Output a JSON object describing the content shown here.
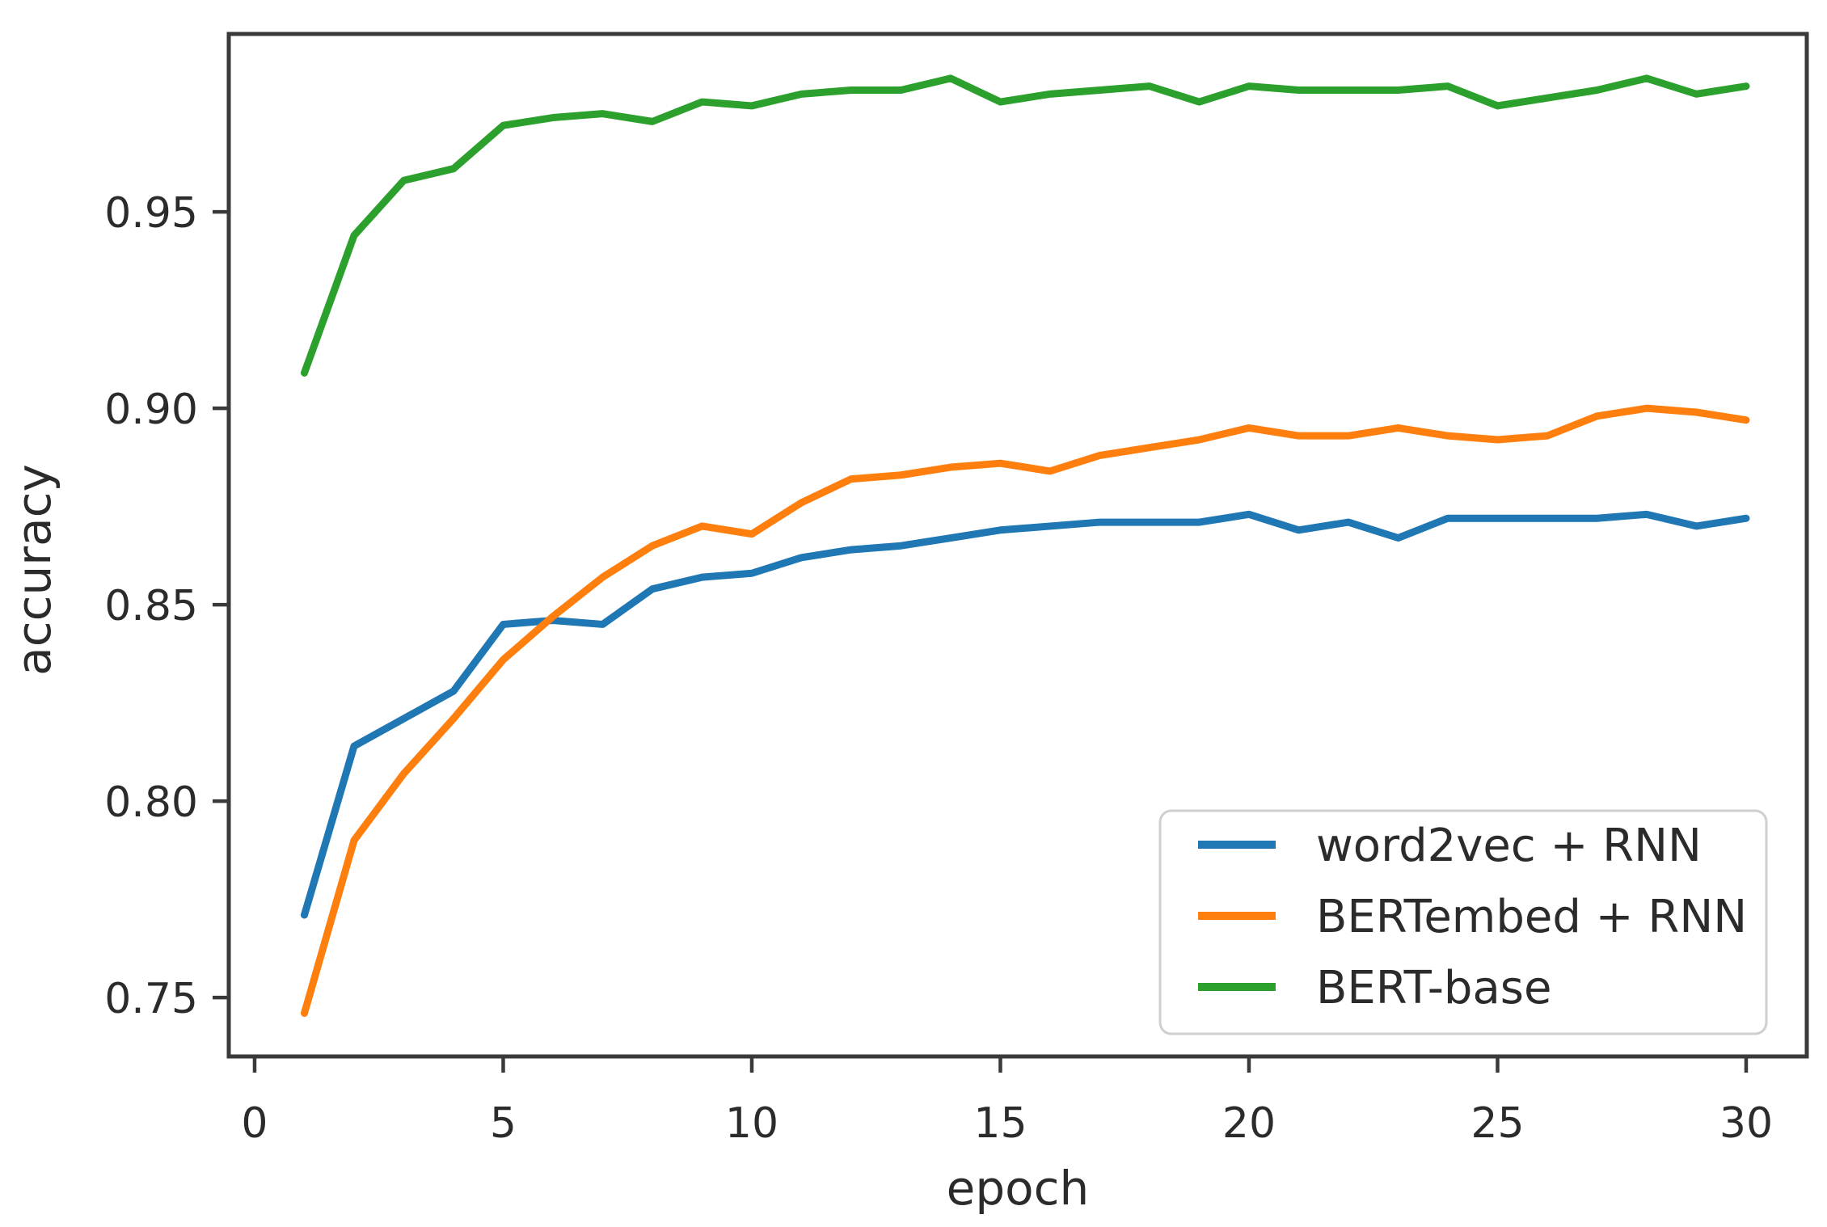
{
  "chart_data": {
    "type": "line",
    "title": "",
    "xlabel": "epoch",
    "ylabel": "accuracy",
    "x": [
      1,
      2,
      3,
      4,
      5,
      6,
      7,
      8,
      9,
      10,
      11,
      12,
      13,
      14,
      15,
      16,
      17,
      18,
      19,
      20,
      21,
      22,
      23,
      24,
      25,
      26,
      27,
      28,
      29,
      30
    ],
    "series": [
      {
        "name": "word2vec + RNN",
        "color": "#1f77b4",
        "values": [
          0.771,
          0.814,
          0.821,
          0.828,
          0.845,
          0.846,
          0.845,
          0.854,
          0.857,
          0.858,
          0.862,
          0.864,
          0.865,
          0.867,
          0.869,
          0.87,
          0.871,
          0.871,
          0.871,
          0.873,
          0.869,
          0.871,
          0.867,
          0.872,
          0.872,
          0.872,
          0.872,
          0.873,
          0.87,
          0.872
        ]
      },
      {
        "name": "BERTembed + RNN",
        "color": "#ff7f0e",
        "values": [
          0.746,
          0.79,
          0.807,
          0.821,
          0.836,
          0.847,
          0.857,
          0.865,
          0.87,
          0.868,
          0.876,
          0.882,
          0.883,
          0.885,
          0.886,
          0.884,
          0.888,
          0.89,
          0.892,
          0.895,
          0.893,
          0.893,
          0.895,
          0.893,
          0.892,
          0.893,
          0.898,
          0.9,
          0.899,
          0.897
        ]
      },
      {
        "name": "BERT-base",
        "color": "#2ca02c",
        "values": [
          0.909,
          0.944,
          0.958,
          0.961,
          0.972,
          0.974,
          0.975,
          0.973,
          0.978,
          0.977,
          0.98,
          0.981,
          0.981,
          0.984,
          0.978,
          0.98,
          0.981,
          0.982,
          0.978,
          0.982,
          0.981,
          0.981,
          0.981,
          0.982,
          0.977,
          0.979,
          0.981,
          0.984,
          0.98,
          0.982
        ]
      }
    ],
    "xticks": [
      0,
      5,
      10,
      15,
      20,
      25,
      30
    ],
    "xticklabels": [
      "0",
      "5",
      "10",
      "15",
      "20",
      "25",
      "30"
    ],
    "yticks": [
      0.75,
      0.8,
      0.85,
      0.9,
      0.95
    ],
    "yticklabels": [
      "0.75",
      "0.80",
      "0.85",
      "0.90",
      "0.95"
    ],
    "xlim": [
      -0.52,
      31.22
    ],
    "ylim": [
      0.735,
      0.9953
    ],
    "grid": false,
    "legend": {
      "position": "lower right",
      "entries": [
        "word2vec + RNN",
        "BERTembed + RNN",
        "BERT-base"
      ]
    },
    "frame_color": "#3a3a3a",
    "background": "#ffffff"
  }
}
